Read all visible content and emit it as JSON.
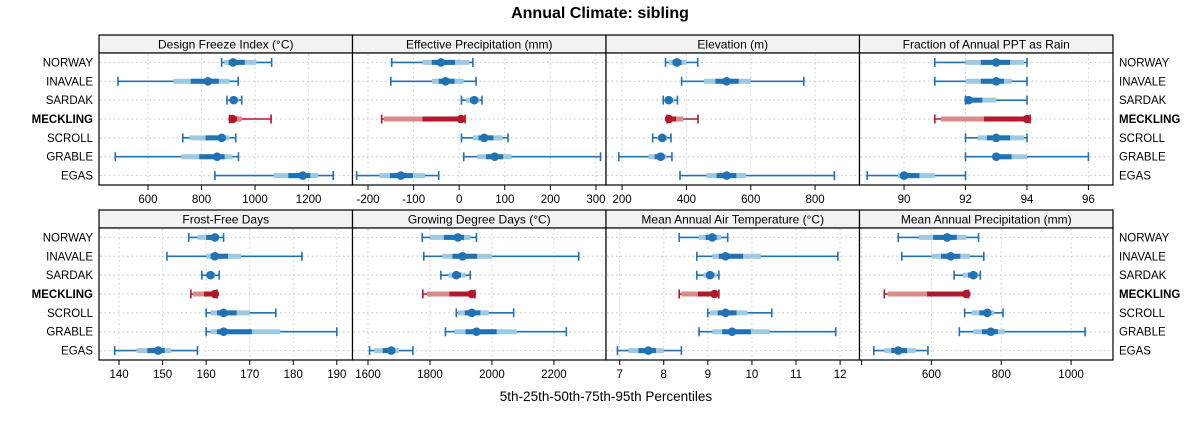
{
  "title": "Annual Climate: sibling",
  "caption": "5th-25th-50th-75th-95th Percentiles",
  "sites": [
    "NORWAY",
    "INAVALE",
    "SARDAK",
    "MECKLING",
    "SCROLL",
    "GRABLE",
    "EGAS"
  ],
  "highlight_site": "MECKLING",
  "colors": {
    "series": "#2171b5",
    "series_band": "#9ecae1",
    "highlight": "#b2182b",
    "highlight_band": "#d98b8b",
    "grid": "#cccccc",
    "strip_bg": "#f2f2f2",
    "panel_border": "#000000",
    "text": "#000000"
  },
  "chart_data": {
    "type": "scatter",
    "subtype": "percentile-dotplot-trellis",
    "percentile_labels": [
      "5th",
      "25th",
      "50th",
      "75th",
      "95th"
    ],
    "grid": true,
    "layout": {
      "rows": 2,
      "cols": 4
    },
    "categories": [
      "NORWAY",
      "INAVALE",
      "SARDAK",
      "MECKLING",
      "SCROLL",
      "GRABLE",
      "EGAS"
    ],
    "panels": [
      {
        "title": "Design Freeze Index (°C)",
        "xlim": [
          417,
          1364
        ],
        "ticks": [
          600,
          800,
          1000,
          1200
        ],
        "tick_labels": [
          "600",
          "800",
          "1000",
          "1200"
        ],
        "values": {
          "NORWAY": [
            875,
            885,
            918,
            1005,
            1062
          ],
          "INAVALE": [
            488,
            695,
            824,
            905,
            937
          ],
          "SARDAK": [
            895,
            905,
            920,
            938,
            950
          ],
          "MECKLING": [
            905,
            910,
            916,
            950,
            1060
          ],
          "SCROLL": [
            730,
            755,
            875,
            905,
            928
          ],
          "GRABLE": [
            478,
            725,
            858,
            915,
            938
          ],
          "EGAS": [
            850,
            1070,
            1178,
            1235,
            1292
          ]
        }
      },
      {
        "title": "Effective Precipitation (mm)",
        "xlim": [
          -234,
          322
        ],
        "ticks": [
          -200,
          -100,
          0,
          100,
          200,
          300
        ],
        "tick_labels": [
          "-200",
          "-100",
          "0",
          "100",
          "200",
          "300"
        ],
        "values": {
          "NORWAY": [
            -148,
            -80,
            -40,
            22,
            30
          ],
          "INAVALE": [
            -150,
            -60,
            -30,
            10,
            37
          ],
          "SARDAK": [
            5,
            15,
            33,
            45,
            50
          ],
          "MECKLING": [
            -170,
            -165,
            4,
            9,
            13
          ],
          "SCROLL": [
            5,
            30,
            55,
            95,
            107
          ],
          "GRABLE": [
            10,
            40,
            78,
            115,
            310
          ],
          "EGAS": [
            -225,
            -175,
            -128,
            -75,
            -45
          ]
        }
      },
      {
        "title": "Elevation (m)",
        "xlim": [
          150,
          938
        ],
        "ticks": [
          200,
          400,
          600,
          800
        ],
        "tick_labels": [
          "200",
          "400",
          "600",
          "800"
        ],
        "values": {
          "NORWAY": [
            335,
            345,
            370,
            400,
            435
          ],
          "INAVALE": [
            385,
            455,
            525,
            600,
            765
          ],
          "SARDAK": [
            328,
            335,
            345,
            362,
            372
          ],
          "MECKLING": [
            340,
            343,
            346,
            390,
            436
          ],
          "SCROLL": [
            295,
            310,
            325,
            340,
            352
          ],
          "GRABLE": [
            190,
            282,
            320,
            338,
            355
          ],
          "EGAS": [
            380,
            462,
            525,
            585,
            860
          ]
        }
      },
      {
        "title": "Fraction of Annual PPT as Rain",
        "xlim": [
          88.55,
          96.8
        ],
        "ticks": [
          90,
          92,
          94,
          96
        ],
        "tick_labels": [
          "90",
          "92",
          "94",
          "96"
        ],
        "values": {
          "NORWAY": [
            91,
            92,
            93,
            93.9,
            94
          ],
          "INAVALE": [
            91,
            92,
            93,
            93.5,
            94
          ],
          "SARDAK": [
            92,
            92,
            92.1,
            93,
            94
          ],
          "MECKLING": [
            91,
            91.2,
            94,
            94,
            94.1
          ],
          "SCROLL": [
            92,
            92.4,
            93,
            93.9,
            94
          ],
          "GRABLE": [
            92,
            92.9,
            93,
            94,
            96
          ],
          "EGAS": [
            88.8,
            89.8,
            90,
            91,
            92
          ]
        }
      },
      {
        "title": "Frost-Free Days",
        "xlim": [
          135.4,
          193.6
        ],
        "ticks": [
          140,
          150,
          160,
          170,
          180,
          190
        ],
        "tick_labels": [
          "140",
          "150",
          "160",
          "170",
          "180",
          "190"
        ],
        "values": {
          "NORWAY": [
            156,
            158,
            162,
            163,
            164
          ],
          "INAVALE": [
            151,
            160,
            162,
            168,
            182
          ],
          "SARDAK": [
            159,
            160,
            161,
            162,
            163
          ],
          "MECKLING": [
            156.5,
            157,
            162,
            162,
            162.5
          ],
          "SCROLL": [
            160,
            161,
            164,
            170,
            176
          ],
          "GRABLE": [
            160,
            161,
            164,
            177,
            190
          ],
          "EGAS": [
            139,
            144,
            149,
            152,
            158
          ]
        }
      },
      {
        "title": "Growing Degree Days (°C)",
        "xlim": [
          1550,
          2368
        ],
        "ticks": [
          1600,
          1800,
          2000,
          2200
        ],
        "tick_labels": [
          "1600",
          "1800",
          "2000",
          "2200"
        ],
        "values": {
          "NORWAY": [
            1775,
            1800,
            1890,
            1930,
            1950
          ],
          "INAVALE": [
            1780,
            1840,
            1905,
            2000,
            2280
          ],
          "SARDAK": [
            1835,
            1860,
            1885,
            1915,
            1930
          ],
          "MECKLING": [
            1777,
            1790,
            1935,
            1940,
            1945
          ],
          "SCROLL": [
            1885,
            1890,
            1935,
            1990,
            2070
          ],
          "GRABLE": [
            1850,
            1880,
            1950,
            2080,
            2240
          ],
          "EGAS": [
            1605,
            1620,
            1675,
            1700,
            1745
          ]
        }
      },
      {
        "title": "Mean Annual Air Temperature (°C)",
        "xlim": [
          6.69,
          12.44
        ],
        "ticks": [
          7,
          8,
          9,
          10,
          11,
          12
        ],
        "tick_labels": [
          "7",
          "8",
          "9",
          "10",
          "11",
          "12"
        ],
        "values": {
          "NORWAY": [
            8.35,
            8.8,
            9.1,
            9.3,
            9.45
          ],
          "INAVALE": [
            8.75,
            9.1,
            9.4,
            10.2,
            11.95
          ],
          "SARDAK": [
            8.75,
            8.9,
            9.05,
            9.2,
            9.25
          ],
          "MECKLING": [
            8.35,
            8.4,
            9.15,
            9.2,
            9.25
          ],
          "SCROLL": [
            9.0,
            9.05,
            9.4,
            9.9,
            10.45
          ],
          "GRABLE": [
            8.8,
            9.1,
            9.55,
            10.4,
            11.9
          ],
          "EGAS": [
            6.95,
            7.2,
            7.65,
            8.0,
            8.4
          ]
        }
      },
      {
        "title": "Mean Annual Precipitation (mm)",
        "xlim": [
          394,
          1120
        ],
        "ticks": [
          400,
          600,
          800,
          1000
        ],
        "tick_labels": [
          "",
          "600",
          "800",
          "1000"
        ],
        "values": {
          "NORWAY": [
            505,
            565,
            645,
            700,
            735
          ],
          "INAVALE": [
            515,
            600,
            655,
            710,
            750
          ],
          "SARDAK": [
            665,
            690,
            720,
            735,
            740
          ],
          "MECKLING": [
            465,
            475,
            700,
            703,
            706
          ],
          "SCROLL": [
            695,
            715,
            760,
            780,
            805
          ],
          "GRABLE": [
            680,
            720,
            770,
            810,
            1040
          ],
          "EGAS": [
            435,
            465,
            505,
            555,
            590
          ]
        }
      }
    ]
  }
}
